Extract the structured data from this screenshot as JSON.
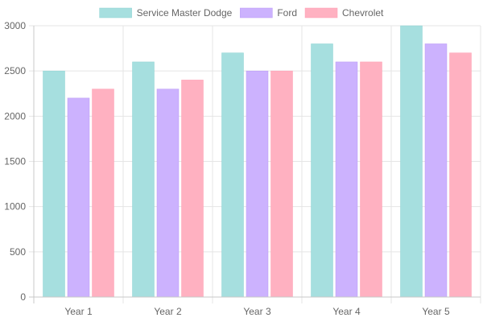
{
  "chart_data": {
    "type": "bar",
    "categories": [
      "Year 1",
      "Year 2",
      "Year 3",
      "Year 4",
      "Year 5"
    ],
    "series": [
      {
        "name": "Service Master Dodge",
        "values": [
          2500,
          2600,
          2700,
          2800,
          3000
        ],
        "color": "#a6dfdf",
        "border": "#8fd3d3"
      },
      {
        "name": "Ford",
        "values": [
          2200,
          2300,
          2500,
          2600,
          2800
        ],
        "color": "#ccb2fe",
        "border": "#b999f5"
      },
      {
        "name": "Chevrolet",
        "values": [
          2300,
          2400,
          2500,
          2600,
          2700
        ],
        "color": "#ffb1c1",
        "border": "#ff9fb3"
      }
    ],
    "yticks": [
      "0",
      "500",
      "1000",
      "1500",
      "2000",
      "2500",
      "3000"
    ],
    "ylim": [
      0,
      3000
    ],
    "grid": true,
    "legend_position": "top-center"
  },
  "colors": {
    "grid": "#e5e5e5",
    "axis": "#c8c8c8",
    "text": "#666666"
  }
}
